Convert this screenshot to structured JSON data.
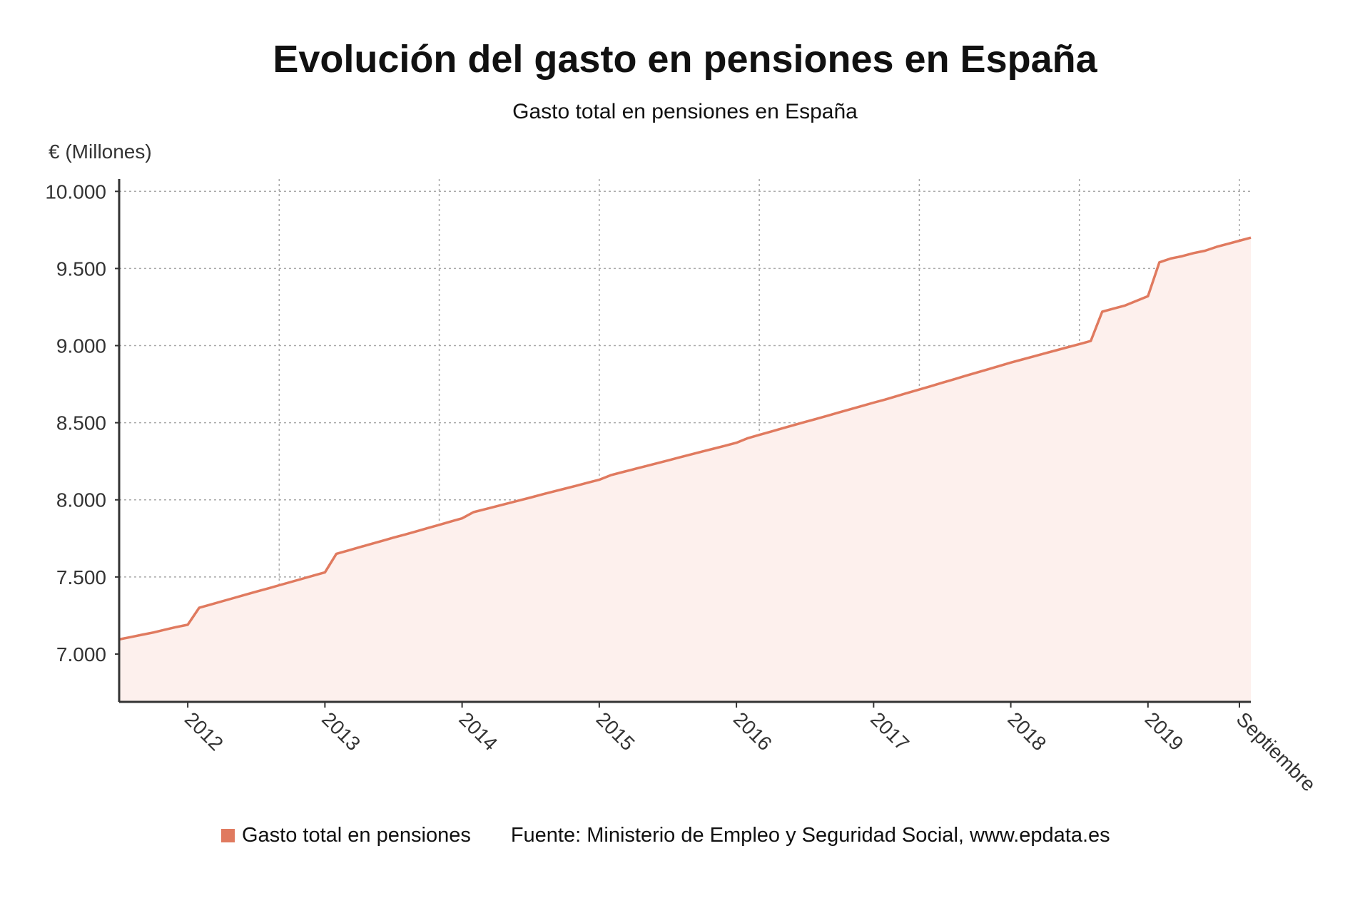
{
  "chart_data": {
    "type": "area",
    "title": "Evolución del gasto en pensiones en España",
    "subtitle": "Gasto total en pensiones en España",
    "ylabel": "€ (Millones)",
    "xlabel": "",
    "ylim": [
      6690,
      10080
    ],
    "yticks": [
      7000,
      7500,
      8000,
      8500,
      9000,
      9500,
      10000
    ],
    "ytick_labels": [
      "7.000",
      "7.500",
      "8.000",
      "8.500",
      "9.000",
      "9.500",
      "10.000"
    ],
    "xticks": [
      "2012-01",
      "2013-01",
      "2014-01",
      "2015-01",
      "2016-01",
      "2017-01",
      "2018-01",
      "2019-01",
      "2019-09"
    ],
    "xtick_labels": [
      "2012",
      "2013",
      "2014",
      "2015",
      "2016",
      "2017",
      "2018",
      "2019",
      "Septiembre"
    ],
    "grid": true,
    "legend_position": "bottom",
    "series": [
      {
        "name": "Gasto total en pensiones",
        "color": "#e07a5f",
        "fill": "#fdf0ed",
        "start": "2011-07",
        "frequency": "monthly",
        "values": [
          7095,
          7110,
          7125,
          7140,
          7158,
          7175,
          7190,
          7300,
          7321,
          7342,
          7363,
          7384,
          7405,
          7425,
          7446,
          7467,
          7488,
          7509,
          7530,
          7650,
          7671,
          7692,
          7713,
          7734,
          7755,
          7775,
          7796,
          7817,
          7838,
          7859,
          7880,
          7920,
          7939,
          7958,
          7977,
          7996,
          8015,
          8035,
          8054,
          8073,
          8092,
          8111,
          8130,
          8160,
          8179,
          8198,
          8217,
          8236,
          8255,
          8275,
          8294,
          8313,
          8332,
          8351,
          8370,
          8400,
          8421,
          8442,
          8463,
          8484,
          8505,
          8525,
          8546,
          8567,
          8588,
          8609,
          8630,
          8650,
          8672,
          8694,
          8715,
          8737,
          8759,
          8781,
          8803,
          8825,
          8846,
          8868,
          8890,
          8910,
          8930,
          8950,
          8970,
          8990,
          9010,
          9030,
          9220,
          9240,
          9260,
          9290,
          9320,
          9540,
          9565,
          9580,
          9600,
          9615,
          9640,
          9660,
          9680,
          9700
        ]
      }
    ],
    "source": "Fuente: Ministerio de Empleo y Seguridad Social, www.epdata.es"
  }
}
